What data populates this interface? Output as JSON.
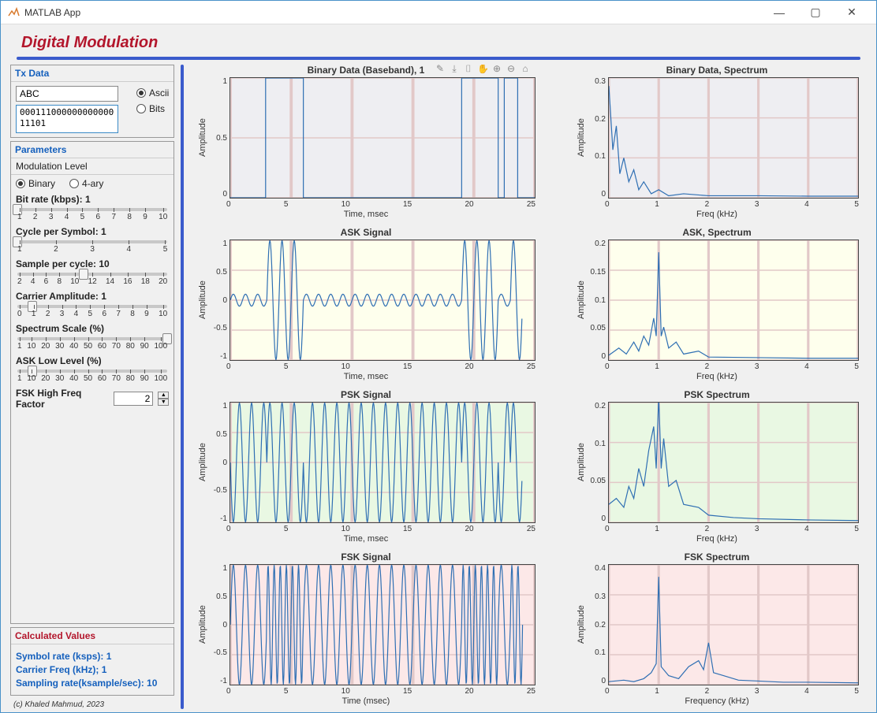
{
  "window": {
    "title": "MATLAB App"
  },
  "app": {
    "title": "Digital Modulation",
    "copyright": "(c) Khaled Mahmud, 2023"
  },
  "txData": {
    "panelTitle": "Tx Data",
    "asciiValue": "ABC",
    "bitsValue": "00011100000000000011101",
    "options": {
      "ascii": "Ascii",
      "bits": "Bits",
      "selected": "ascii"
    }
  },
  "params": {
    "panelTitle": "Parameters",
    "modLevel": {
      "label": "Modulation Level",
      "options": {
        "binary": "Binary",
        "fourary": "4-ary",
        "selected": "binary"
      }
    },
    "sliders": [
      {
        "label": "Bit rate (kbps): 1",
        "ticks": [
          "1",
          "2",
          "3",
          "4",
          "5",
          "6",
          "7",
          "8",
          "9",
          "10"
        ],
        "value_pct": 0
      },
      {
        "label": "Cycle per Symbol: 1",
        "ticks": [
          "1",
          "2",
          "3",
          "4",
          "5"
        ],
        "value_pct": 0
      },
      {
        "label": "Sample per cycle: 10",
        "ticks": [
          "2",
          "4",
          "6",
          "8",
          "10",
          "12",
          "14",
          "16",
          "18",
          "20"
        ],
        "value_pct": 44
      },
      {
        "label": "Carrier Amplitude: 1",
        "ticks": [
          "0",
          "1",
          "2",
          "3",
          "4",
          "5",
          "6",
          "7",
          "8",
          "9",
          "10"
        ],
        "value_pct": 10
      },
      {
        "label": "Spectrum Scale (%)",
        "ticks": [
          "1",
          "10",
          "20",
          "30",
          "40",
          "50",
          "60",
          "70",
          "80",
          "90",
          "100"
        ],
        "value_pct": 100
      },
      {
        "label": "ASK Low  Level (%)",
        "ticks": [
          "1",
          "10",
          "20",
          "30",
          "40",
          "50",
          "60",
          "70",
          "80",
          "90",
          "100"
        ],
        "value_pct": 10
      }
    ],
    "fskFactor": {
      "label": "FSK High Freq Factor",
      "value": "2"
    }
  },
  "calc": {
    "panelTitle": "Calculated Values",
    "lines": [
      "Symbol rate (ksps): 1",
      "Carrier Freq (kHz); 1",
      "Sampling rate(ksample/sec): 10"
    ]
  },
  "plots": [
    {
      "title": "Binary Data (Baseband), 1",
      "ylabel": "Amplitude",
      "xlabel": "Time, msec",
      "bg": "#eeeef2",
      "grid": "#d8d8dd",
      "stroke": "#2f6fb3",
      "toolbar": true,
      "ylim": [
        0,
        1
      ],
      "yticks": [
        "0",
        "0.5",
        "1"
      ],
      "xlim": [
        0,
        25
      ],
      "xticks": [
        "0",
        "5",
        "10",
        "15",
        "20",
        "25"
      ],
      "series": {
        "type": "step",
        "points": [
          [
            0,
            0
          ],
          [
            2.9,
            0
          ],
          [
            2.9,
            1
          ],
          [
            6,
            1
          ],
          [
            6,
            0
          ],
          [
            19,
            0
          ],
          [
            19,
            1
          ],
          [
            22,
            1
          ],
          [
            22,
            0
          ],
          [
            22.5,
            0
          ],
          [
            22.5,
            1
          ],
          [
            23.6,
            1
          ],
          [
            23.6,
            0
          ],
          [
            25,
            0
          ]
        ]
      }
    },
    {
      "title": "Binary Data, Spectrum",
      "ylabel": "Amplitude",
      "xlabel": "Freq (kHz)",
      "bg": "#eeeef2",
      "grid": "#d8d8dd",
      "stroke": "#2f6fb3",
      "ylim": [
        0,
        0.3
      ],
      "yticks": [
        "0",
        "0.1",
        "0.2",
        "0.3"
      ],
      "xlim": [
        0,
        5
      ],
      "xticks": [
        "0",
        "1",
        "2",
        "3",
        "4",
        "5"
      ],
      "series": {
        "type": "poly",
        "points": [
          [
            0,
            0.28
          ],
          [
            0.08,
            0.12
          ],
          [
            0.15,
            0.18
          ],
          [
            0.22,
            0.06
          ],
          [
            0.3,
            0.1
          ],
          [
            0.4,
            0.04
          ],
          [
            0.5,
            0.07
          ],
          [
            0.6,
            0.02
          ],
          [
            0.7,
            0.04
          ],
          [
            0.85,
            0.01
          ],
          [
            1,
            0.02
          ],
          [
            1.2,
            0.005
          ],
          [
            1.5,
            0.01
          ],
          [
            2,
            0.005
          ],
          [
            3,
            0.005
          ],
          [
            4,
            0.004
          ],
          [
            5,
            0.004
          ]
        ]
      }
    },
    {
      "title": "ASK Signal",
      "ylabel": "Amplitude",
      "xlabel": "Time, msec",
      "bg": "#feffed",
      "grid": "#dedecc",
      "stroke": "#2f6fb3",
      "ylim": [
        -1,
        1
      ],
      "yticks": [
        "-1",
        "-0.5",
        "0",
        "0.5",
        "1"
      ],
      "xlim": [
        0,
        25
      ],
      "xticks": [
        "0",
        "5",
        "10",
        "15",
        "20",
        "25"
      ],
      "series": {
        "type": "ask"
      }
    },
    {
      "title": "ASK, Spectrum",
      "ylabel": "Amplitude",
      "xlabel": "Freq (kHz)",
      "bg": "#feffed",
      "grid": "#dedecc",
      "stroke": "#2f6fb3",
      "ylim": [
        0,
        0.2
      ],
      "yticks": [
        "0",
        "0.05",
        "0.1",
        "0.15",
        "0.2"
      ],
      "xlim": [
        0,
        5
      ],
      "xticks": [
        "0",
        "1",
        "2",
        "3",
        "4",
        "5"
      ],
      "series": {
        "type": "poly",
        "points": [
          [
            0,
            0.008
          ],
          [
            0.2,
            0.02
          ],
          [
            0.35,
            0.01
          ],
          [
            0.5,
            0.03
          ],
          [
            0.6,
            0.015
          ],
          [
            0.7,
            0.04
          ],
          [
            0.8,
            0.025
          ],
          [
            0.9,
            0.07
          ],
          [
            0.95,
            0.04
          ],
          [
            1,
            0.18
          ],
          [
            1.05,
            0.04
          ],
          [
            1.1,
            0.055
          ],
          [
            1.2,
            0.02
          ],
          [
            1.35,
            0.03
          ],
          [
            1.5,
            0.01
          ],
          [
            1.8,
            0.015
          ],
          [
            2,
            0.005
          ],
          [
            3,
            0.004
          ],
          [
            4,
            0.003
          ],
          [
            5,
            0.003
          ]
        ]
      }
    },
    {
      "title": "PSK Signal",
      "ylabel": "Amplitude",
      "xlabel": "Time, msec",
      "bg": "#e9f8e3",
      "grid": "#c8dcc2",
      "stroke": "#2f6fb3",
      "ylim": [
        -1,
        1
      ],
      "yticks": [
        "-1",
        "-0.5",
        "0",
        "0.5",
        "1"
      ],
      "xlim": [
        0,
        25
      ],
      "xticks": [
        "0",
        "5",
        "10",
        "15",
        "20",
        "25"
      ],
      "series": {
        "type": "psk"
      }
    },
    {
      "title": "PSK Spectrum",
      "ylabel": "Amplitude",
      "xlabel": "Freq (kHz)",
      "bg": "#e9f8e3",
      "grid": "#c8dcc2",
      "stroke": "#2f6fb3",
      "ylim": [
        0,
        0.2
      ],
      "yticks": [
        "0",
        "0.05",
        "0.1",
        "0.2"
      ],
      "xlim": [
        0,
        5
      ],
      "xticks": [
        "0",
        "1",
        "2",
        "3",
        "4",
        "5"
      ],
      "series": {
        "type": "poly",
        "points": [
          [
            0,
            0.03
          ],
          [
            0.15,
            0.04
          ],
          [
            0.3,
            0.025
          ],
          [
            0.4,
            0.06
          ],
          [
            0.5,
            0.04
          ],
          [
            0.6,
            0.09
          ],
          [
            0.7,
            0.06
          ],
          [
            0.8,
            0.12
          ],
          [
            0.9,
            0.16
          ],
          [
            0.95,
            0.09
          ],
          [
            1,
            0.21
          ],
          [
            1.05,
            0.09
          ],
          [
            1.1,
            0.14
          ],
          [
            1.2,
            0.06
          ],
          [
            1.35,
            0.07
          ],
          [
            1.5,
            0.03
          ],
          [
            1.8,
            0.025
          ],
          [
            2,
            0.012
          ],
          [
            2.5,
            0.008
          ],
          [
            3,
            0.006
          ],
          [
            4,
            0.004
          ],
          [
            5,
            0.003
          ]
        ]
      }
    },
    {
      "title": "FSK Signal",
      "ylabel": "Amplitude",
      "xlabel": "Time (msec)",
      "bg": "#fce8e8",
      "grid": "#e2c8c8",
      "stroke": "#2f6fb3",
      "ylim": [
        -1,
        1
      ],
      "yticks": [
        "-1",
        "-0.5",
        "0",
        "0.5",
        "1"
      ],
      "xlim": [
        0,
        25
      ],
      "xticks": [
        "0",
        "5",
        "10",
        "15",
        "20",
        "25"
      ],
      "series": {
        "type": "fsk"
      }
    },
    {
      "title": "FSK Spectrum",
      "ylabel": "Amplitude",
      "xlabel": "Frequency (kHz)",
      "bg": "#fce8e8",
      "grid": "#e2c8c8",
      "stroke": "#2f6fb3",
      "ylim": [
        0,
        0.4
      ],
      "yticks": [
        "0",
        "0.1",
        "0.2",
        "0.3",
        "0.4"
      ],
      "xlim": [
        0,
        5
      ],
      "xticks": [
        "0",
        "1",
        "2",
        "3",
        "4",
        "5"
      ],
      "series": {
        "type": "poly",
        "points": [
          [
            0,
            0.01
          ],
          [
            0.3,
            0.015
          ],
          [
            0.5,
            0.01
          ],
          [
            0.7,
            0.02
          ],
          [
            0.85,
            0.04
          ],
          [
            0.95,
            0.07
          ],
          [
            1,
            0.36
          ],
          [
            1.05,
            0.06
          ],
          [
            1.2,
            0.03
          ],
          [
            1.4,
            0.02
          ],
          [
            1.6,
            0.06
          ],
          [
            1.8,
            0.08
          ],
          [
            1.9,
            0.05
          ],
          [
            2,
            0.14
          ],
          [
            2.1,
            0.04
          ],
          [
            2.3,
            0.03
          ],
          [
            2.6,
            0.015
          ],
          [
            3,
            0.012
          ],
          [
            3.5,
            0.008
          ],
          [
            4,
            0.008
          ],
          [
            5,
            0.006
          ]
        ]
      }
    }
  ]
}
